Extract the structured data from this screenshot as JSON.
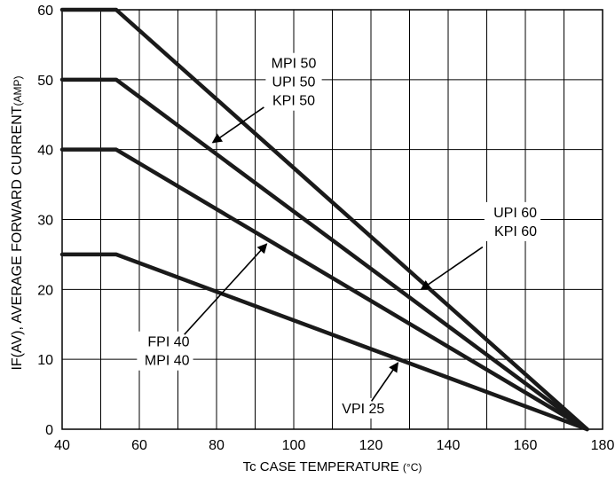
{
  "chart_data": {
    "type": "line",
    "xlabel": {
      "main": "Tc CASE TEMPERATURE",
      "unit": "(°C)"
    },
    "ylabel": {
      "main": "IF(AV), AVERAGE FORWARD CURRENT",
      "unit": "(AMP)"
    },
    "xlim": [
      40,
      180
    ],
    "ylim": [
      0,
      60
    ],
    "x_ticks": [
      40,
      60,
      80,
      100,
      120,
      140,
      160,
      180
    ],
    "y_ticks": [
      0,
      10,
      20,
      30,
      40,
      50,
      60
    ],
    "x_gridlines": [
      40,
      50,
      60,
      70,
      80,
      90,
      100,
      110,
      120,
      130,
      140,
      150,
      160,
      170,
      180
    ],
    "y_gridlines": [
      0,
      10,
      20,
      30,
      40,
      50,
      60
    ],
    "grid": true,
    "series": [
      {
        "points": [
          [
            40,
            60
          ],
          [
            54,
            60
          ],
          [
            176,
            0
          ]
        ]
      },
      {
        "points": [
          [
            40,
            50
          ],
          [
            54,
            50
          ],
          [
            176,
            0
          ]
        ]
      },
      {
        "points": [
          [
            40,
            40
          ],
          [
            54,
            40
          ],
          [
            176,
            0
          ]
        ]
      },
      {
        "points": [
          [
            40,
            25
          ],
          [
            54,
            25
          ],
          [
            176,
            0
          ]
        ]
      }
    ],
    "annotations": [
      {
        "lines": [
          "MPI 50",
          "UPI 50",
          "KPI 50"
        ],
        "at": [
          100,
          49
        ],
        "arrow_to": [
          79,
          41
        ],
        "align": "middle"
      },
      {
        "lines": [
          "UPI 60",
          "KPI 60"
        ],
        "at": [
          163,
          29
        ],
        "arrow_to": [
          133,
          20
        ],
        "align": "end"
      },
      {
        "lines": [
          "FPI 40",
          "MPI 40"
        ],
        "at": [
          73,
          10.5
        ],
        "arrow_to": [
          93,
          26.5
        ],
        "align": "end"
      },
      {
        "lines": [
          "VPI 25"
        ],
        "at": [
          118,
          2.3
        ],
        "arrow_to": [
          127,
          9.5
        ],
        "align": "middle"
      }
    ]
  }
}
